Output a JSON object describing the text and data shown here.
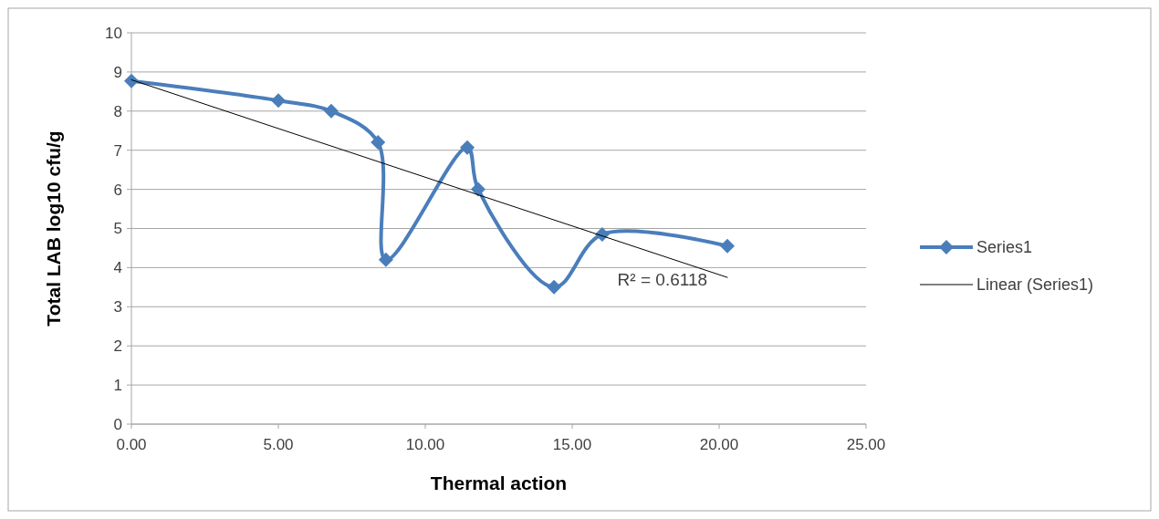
{
  "chart_data": {
    "type": "line",
    "xlabel": "Thermal action",
    "ylabel": "Total LAB log10 cfu/g",
    "xlim": [
      0,
      25
    ],
    "xticks": [
      {
        "value": 0,
        "label": "0.00"
      },
      {
        "value": 5,
        "label": "5.00"
      },
      {
        "value": 10,
        "label": "10.00"
      },
      {
        "value": 15,
        "label": "15.00"
      },
      {
        "value": 20,
        "label": "20.00"
      },
      {
        "value": 25,
        "label": "25.00"
      }
    ],
    "ylim": [
      0,
      10
    ],
    "yticks": [
      0,
      1,
      2,
      3,
      4,
      5,
      6,
      7,
      8,
      9,
      10
    ],
    "grid": "y",
    "legend": "right",
    "series": [
      {
        "name": "Series1",
        "color": "#4a7ebb",
        "marker": "diamond",
        "x": [
          0,
          5.0,
          6.8,
          8.39,
          8.66,
          11.43,
          11.8,
          14.38,
          16.02,
          20.28
        ],
        "values": [
          8.77,
          8.27,
          8.0,
          7.2,
          4.2,
          7.07,
          6.0,
          3.5,
          4.85,
          4.55
        ]
      },
      {
        "name": "Linear (Series1)",
        "color": "#000000",
        "marker": "none",
        "x": [
          0,
          20.28
        ],
        "values": [
          8.8,
          3.75
        ]
      }
    ],
    "annotations": [
      "R² = 0.6118"
    ]
  }
}
